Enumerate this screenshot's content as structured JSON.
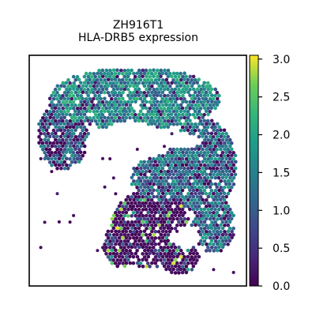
{
  "figure": {
    "title_line1": "ZH916T1",
    "title_line2": "HLA-DRB5 expression"
  },
  "chart_data": {
    "type": "scatter",
    "title": "ZH916T1\nHLA-DRB5 expression",
    "xlabel": "",
    "ylabel": "",
    "grid": false,
    "axis_ticks": false,
    "colorbar": {
      "colormap": "viridis",
      "range": [
        0.0,
        3.05
      ],
      "ticks": [
        0.0,
        0.5,
        1.0,
        1.5,
        2.0,
        2.5,
        3.0
      ],
      "tick_labels": [
        "0.0",
        "0.5",
        "1.0",
        "1.5",
        "2.0",
        "2.5",
        "3.0"
      ],
      "placement": "right"
    },
    "colors": {
      "low": "#440154",
      "mid_low": "#3b528b",
      "mid": "#21918c",
      "mid_high": "#5ec962",
      "high": "#fde725"
    },
    "description_regions": [
      {
        "name": "upper-band",
        "value_level": "mixed 0.8–2.2"
      },
      {
        "name": "right-arc",
        "value_level": "mixed 0.5–2.0"
      },
      {
        "name": "lower-lobe",
        "value_level": "mostly low 0–0.5 with sparse high spots"
      }
    ]
  }
}
